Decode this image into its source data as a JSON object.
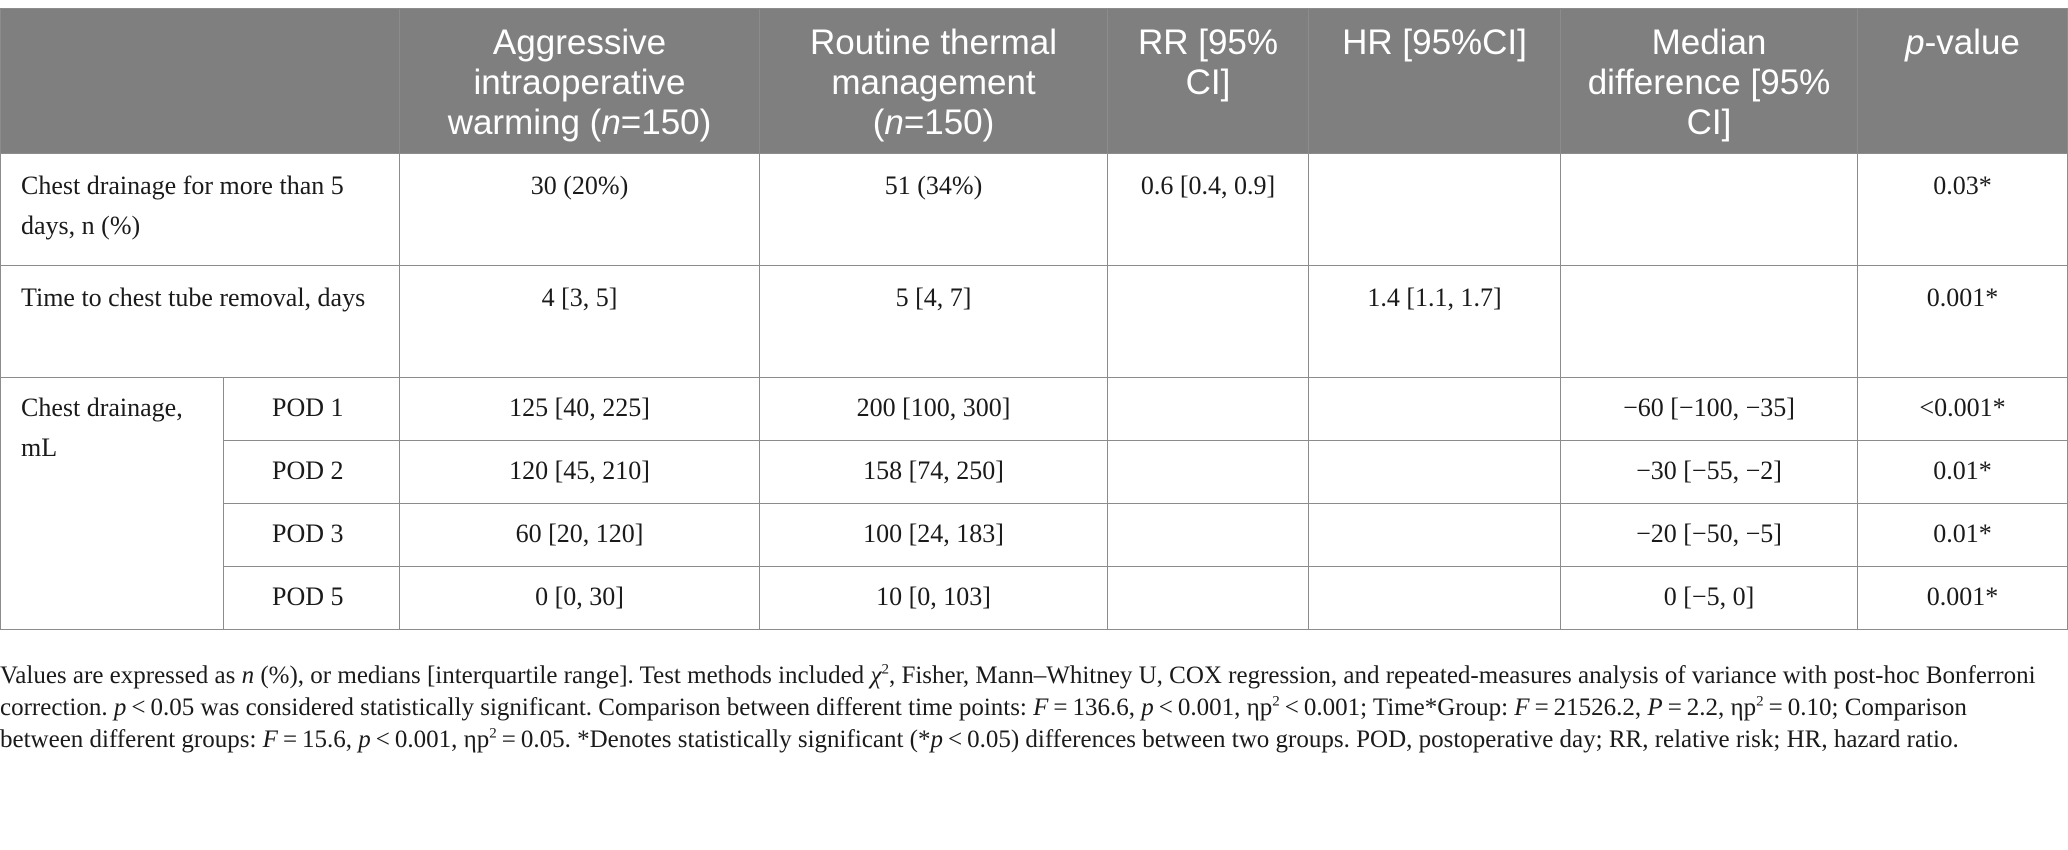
{
  "table": {
    "headers": {
      "empty": "",
      "col1_main": "Aggressive intraoperative warming (",
      "col1_n": "n",
      "col1_tail": "=150)",
      "col2_main": "Routine thermal management (",
      "col2_n": "n",
      "col2_tail": "=150)",
      "col3": "RR [95% CI]",
      "col4": "HR [95%CI]",
      "col5": "Median difference [95% CI]",
      "col6_p": "p",
      "col6_tail": "-value"
    },
    "rows": [
      {
        "label": "Chest drainage for more than 5 days, n (%)",
        "aggressive": "30 (20%)",
        "routine": "51 (34%)",
        "rr": "0.6 [0.4, 0.9]",
        "hr": "",
        "median_diff": "",
        "p": "0.03*"
      },
      {
        "label": "Time to chest tube removal, days",
        "aggressive": "4 [3, 5]",
        "routine": "5 [4, 7]",
        "rr": "",
        "hr": "1.4 [1.1, 1.7]",
        "median_diff": "",
        "p": "0.001*"
      }
    ],
    "drainage_group_label": "Chest drainage, mL",
    "drainage_rows": [
      {
        "pod": "POD 1",
        "aggressive": "125 [40, 225]",
        "routine": "200 [100, 300]",
        "rr": "",
        "hr": "",
        "median_diff": "−60 [−100, −35]",
        "p": "<0.001*"
      },
      {
        "pod": "POD 2",
        "aggressive": "120 [45, 210]",
        "routine": "158 [74, 250]",
        "rr": "",
        "hr": "",
        "median_diff": "−30 [−55, −2]",
        "p": "0.01*"
      },
      {
        "pod": "POD 3",
        "aggressive": "60 [20, 120]",
        "routine": "100 [24, 183]",
        "rr": "",
        "hr": "",
        "median_diff": "−20 [−50, −5]",
        "p": "0.01*"
      },
      {
        "pod": "POD 5",
        "aggressive": "0 [0, 30]",
        "routine": "10 [0, 103]",
        "rr": "",
        "hr": "",
        "median_diff": "0 [−5, 0]",
        "p": "0.001*"
      }
    ]
  },
  "footnote": {
    "t1": "Values are expressed as ",
    "t1_n": "n",
    "t2": " (%), or medians [interquartile range]. Test methods included ",
    "t2_chi": "χ",
    "t2_sup": "2",
    "t3": ", Fisher, Mann–Whitney U, COX regression, and repeated-measures analysis of variance with post-hoc Bonferroni correction. ",
    "t3_p": "p",
    "t4": " < 0.05 was considered statistically significant. Comparison between different time points: ",
    "t4_F": "F",
    "t5": " = 136.6, ",
    "t5_p": "p",
    "t6": " < 0.001, ηp",
    "t6_sup": "2",
    "t7": " < 0.001; Time*Group: ",
    "t7_F": "F",
    "t8": " = 21526.2, ",
    "t8_P": "P",
    "t9": " = 2.2, ηp",
    "t9_sup": "2",
    "t10": " = 0.10; Comparison between different groups: ",
    "t10_F": "F",
    "t11": " = 15.6, ",
    "t11_p": "p",
    "t12": " < 0.001, ηp",
    "t12_sup": "2",
    "t13": " = 0.05. *Denotes statistically significant (*",
    "t13_p": "p",
    "t14": " < 0.05) differences between two groups. POD, postoperative day; RR, relative risk; HR, hazard ratio."
  }
}
